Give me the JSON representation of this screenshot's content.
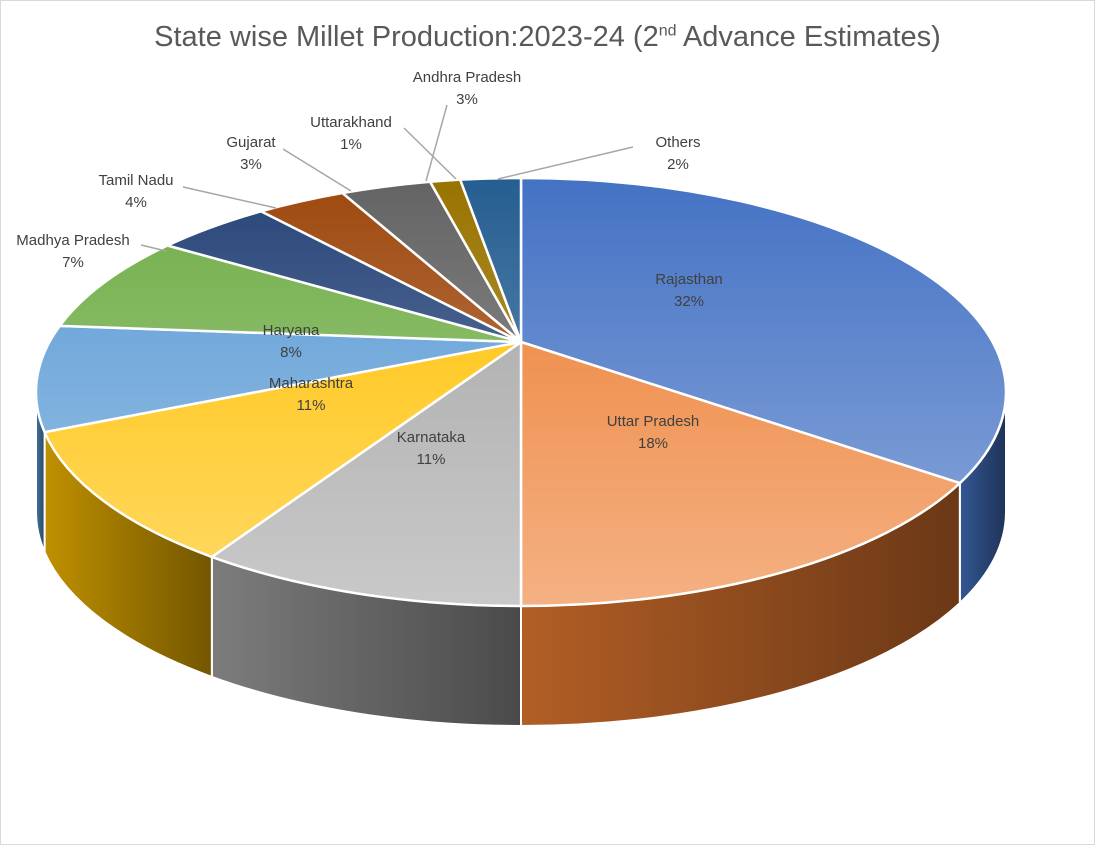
{
  "chart_data": {
    "type": "pie",
    "style": "3d",
    "title": "State wise Millet Production:2023-24 (2nd Advance Estimates)",
    "title_parts": {
      "before": "State wise Millet Production:2023-24 (2",
      "sup": "nd",
      "after": " Advance Estimates)"
    },
    "legend": "none",
    "slices": [
      {
        "label": "Rajasthan",
        "value": 32,
        "pct_label": "32%",
        "color": "#4472C4"
      },
      {
        "label": "Uttar Pradesh",
        "value": 18,
        "pct_label": "18%",
        "color": "#ED7D31"
      },
      {
        "label": "Karnataka",
        "value": 11,
        "pct_label": "11%",
        "color": "#A5A5A5"
      },
      {
        "label": "Maharashtra",
        "value": 11,
        "pct_label": "11%",
        "color": "#FFC000"
      },
      {
        "label": "Haryana",
        "value": 8,
        "pct_label": "8%",
        "color": "#5B9BD5"
      },
      {
        "label": "Madhya Pradesh",
        "value": 7,
        "pct_label": "7%",
        "color": "#70AD47"
      },
      {
        "label": "Tamil Nadu",
        "value": 4,
        "pct_label": "4%",
        "color": "#264478"
      },
      {
        "label": "Gujarat",
        "value": 3,
        "pct_label": "3%",
        "color": "#9E480E"
      },
      {
        "label": "Andhra Pradesh",
        "value": 3,
        "pct_label": "3%",
        "color": "#636363"
      },
      {
        "label": "Uttarakhand",
        "value": 1,
        "pct_label": "1%",
        "color": "#997300"
      },
      {
        "label": "Others",
        "value": 2,
        "pct_label": "2%",
        "color": "#255E91"
      }
    ]
  }
}
